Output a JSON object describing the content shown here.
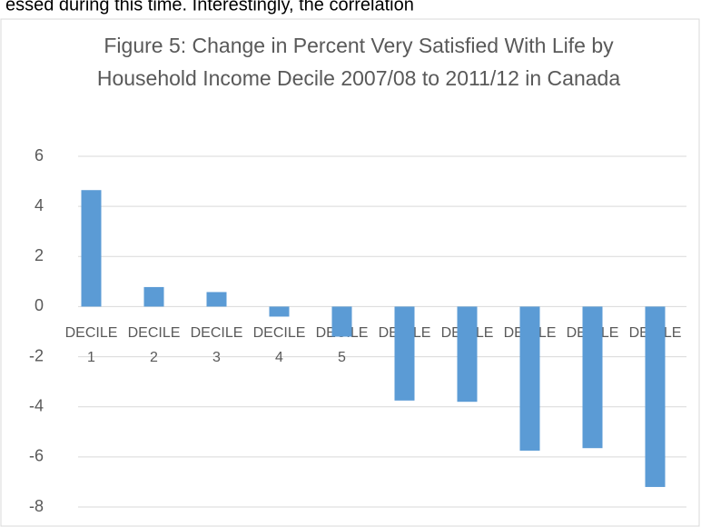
{
  "page_text": "essed during this time. Interestingly, the correlation",
  "chart_data": {
    "type": "bar",
    "title": "Figure 5: Change in Percent Very Satisfied With Life by Household Income Decile 2007/08 to 2011/12 in Canada",
    "categories": [
      "DECILE 1",
      "DECILE 2",
      "DECILE 3",
      "DECILE 4",
      "DECILE 5",
      "DECILE 6",
      "DECILE 7",
      "DECILE 8",
      "DECILE 9",
      "DECILE 10"
    ],
    "values": [
      4.65,
      0.78,
      0.58,
      -0.4,
      -1.2,
      -3.75,
      -3.8,
      -5.75,
      -5.65,
      -7.2
    ],
    "color": "#5b9bd5",
    "ylim": [
      -8,
      6
    ],
    "yticks": [
      -8,
      -6,
      -4,
      -2,
      0,
      2,
      4,
      6
    ],
    "grid": true
  }
}
